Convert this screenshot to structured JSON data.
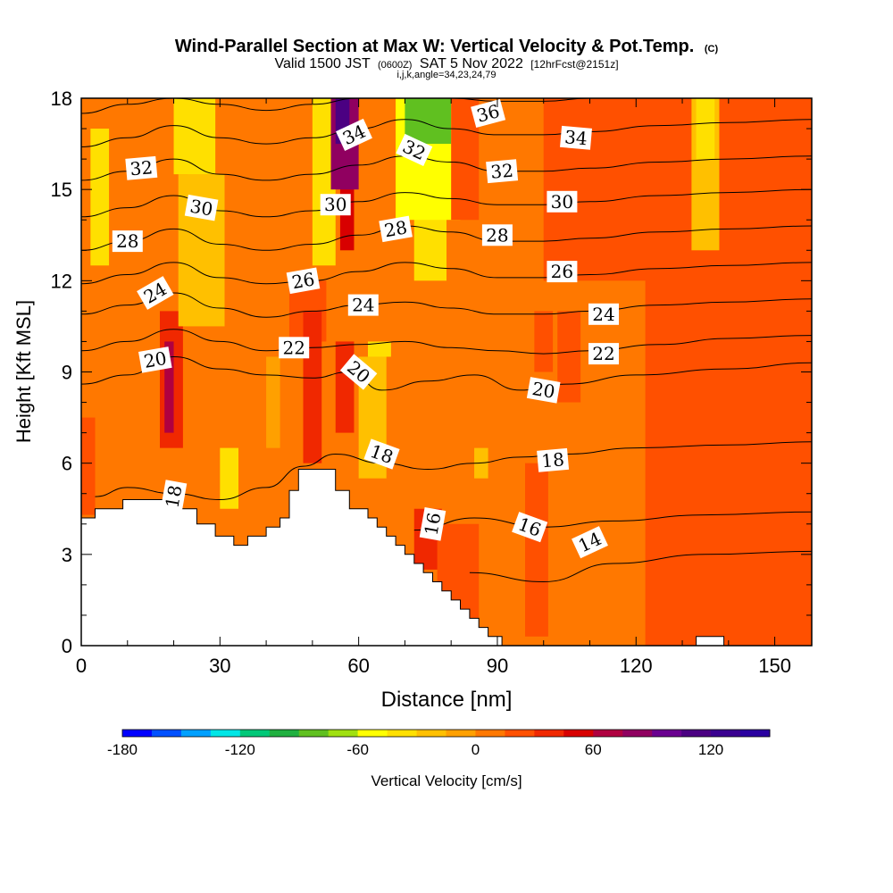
{
  "chart_data": {
    "type": "heatmap",
    "title": "Wind-Parallel Section at Max W: Vertical Velocity & Pot.Temp.",
    "title_mark": "(C)",
    "subtitle": {
      "prefix": "Valid 1500 JST",
      "utc": "(0600Z)",
      "date": "SAT 5 Nov 2022",
      "forecast": "[12hrFcst@2151z]"
    },
    "info": "i,j,k,angle=34,23,24,79",
    "xlabel": "Distance [nm]",
    "ylabel": "Height [Kft MSL]",
    "xlim": [
      0,
      158
    ],
    "ylim": [
      0,
      18
    ],
    "x_ticks": [
      0,
      30,
      60,
      90,
      120,
      150
    ],
    "y_ticks": [
      0,
      3,
      6,
      9,
      12,
      15,
      18
    ],
    "grid": false,
    "colorbar": {
      "label": "Vertical Velocity [cm/s]",
      "min": -180,
      "max": 150,
      "step": 15,
      "tick_labels": [
        -180,
        -120,
        -60,
        0,
        60,
        120
      ],
      "colors": [
        "#0000ff",
        "#0050ff",
        "#00a0ff",
        "#00e6e6",
        "#00c878",
        "#20b040",
        "#60c020",
        "#a0e010",
        "#ffff00",
        "#ffe000",
        "#ffc000",
        "#ffa000",
        "#ff7800",
        "#ff5000",
        "#f02800",
        "#d80000",
        "#b00040",
        "#900060",
        "#6a0090",
        "#4b0082",
        "#3a0090",
        "#2a00a0"
      ]
    },
    "terrain_profile": {
      "x": [
        0,
        3,
        3,
        9,
        9,
        20,
        20,
        25,
        25,
        29,
        29,
        33,
        33,
        36,
        36,
        40,
        40,
        43,
        43,
        45,
        45,
        47,
        47,
        55,
        55,
        58,
        58,
        62,
        62,
        64,
        64,
        66,
        66,
        68,
        68,
        70,
        70,
        72,
        72,
        74,
        74,
        76,
        76,
        78,
        78,
        80,
        80,
        82,
        82,
        84,
        84,
        86,
        86,
        88,
        88,
        91,
        91,
        133,
        133,
        139,
        139,
        158
      ],
      "y": [
        4.2,
        4.2,
        4.5,
        4.5,
        4.8,
        4.8,
        4.5,
        4.5,
        4.0,
        4.0,
        3.6,
        3.6,
        3.3,
        3.3,
        3.6,
        3.6,
        3.9,
        3.9,
        4.2,
        4.2,
        5.1,
        5.1,
        5.8,
        5.8,
        5.1,
        5.1,
        4.5,
        4.5,
        4.2,
        4.2,
        3.9,
        3.9,
        3.6,
        3.6,
        3.3,
        3.3,
        3.0,
        3.0,
        2.7,
        2.7,
        2.4,
        2.4,
        2.1,
        2.1,
        1.8,
        1.8,
        1.5,
        1.5,
        1.2,
        1.2,
        0.9,
        0.9,
        0.6,
        0.6,
        0.3,
        0.3,
        0.0,
        0.0,
        0.3,
        0.3,
        0.0,
        0.0
      ]
    },
    "velocity_cells": [
      {
        "x0": 0,
        "x1": 158,
        "y0": 0,
        "y1": 18,
        "w": 0
      },
      {
        "x0": 0,
        "x1": 12,
        "y0": 0,
        "y1": 18,
        "w": 10
      },
      {
        "x0": 12,
        "x1": 28,
        "y0": 4.5,
        "y1": 18,
        "w": 8
      },
      {
        "x0": 28,
        "x1": 45,
        "y0": 3,
        "y1": 11,
        "w": 10
      },
      {
        "x0": 45,
        "x1": 58,
        "y0": 5,
        "y1": 12,
        "w": 10
      },
      {
        "x0": 60,
        "x1": 85,
        "y0": 3,
        "y1": 12,
        "w": 10
      },
      {
        "x0": 85,
        "x1": 122,
        "y0": 0,
        "y1": 12,
        "w": 0
      },
      {
        "x0": 122,
        "x1": 158,
        "y0": 0,
        "y1": 18,
        "w": 15
      },
      {
        "x0": 100,
        "x1": 125,
        "y0": 12,
        "y1": 18,
        "w": 15
      },
      {
        "x0": 91,
        "x1": 115,
        "y0": 0,
        "y1": 2.5,
        "w": 0
      },
      {
        "x0": 96,
        "x1": 101,
        "y0": 0.3,
        "y1": 6,
        "w": 15
      },
      {
        "x0": 140,
        "x1": 150,
        "y0": 0.3,
        "y1": 5,
        "w": 15
      },
      {
        "x0": 0,
        "x1": 3,
        "y0": 4.3,
        "y1": 7.5,
        "w": 20
      },
      {
        "x0": 17,
        "x1": 22,
        "y0": 6.5,
        "y1": 11,
        "w": 40
      },
      {
        "x0": 18,
        "x1": 20,
        "y0": 7,
        "y1": 10,
        "w": 70
      },
      {
        "x0": 23,
        "x1": 27,
        "y0": 13,
        "y1": 18,
        "w": -15
      },
      {
        "x0": 21,
        "x1": 31,
        "y0": 10.5,
        "y1": 15.5,
        "w": -30
      },
      {
        "x0": 20,
        "x1": 29,
        "y0": 15.5,
        "y1": 18,
        "w": -45
      },
      {
        "x0": 2,
        "x1": 6,
        "y0": 12.5,
        "y1": 17,
        "w": -45
      },
      {
        "x0": 30,
        "x1": 34,
        "y0": 4.5,
        "y1": 6.5,
        "w": -45
      },
      {
        "x0": 40,
        "x1": 43,
        "y0": 6.5,
        "y1": 9.5,
        "w": -15
      },
      {
        "x0": 45,
        "x1": 53,
        "y0": 10,
        "y1": 12,
        "w": 15
      },
      {
        "x0": 48,
        "x1": 52,
        "y0": 6,
        "y1": 11,
        "w": 30
      },
      {
        "x0": 56,
        "x1": 59,
        "y0": 13,
        "y1": 18,
        "w": 45
      },
      {
        "x0": 55,
        "x1": 59,
        "y0": 7,
        "y1": 10,
        "w": 30
      },
      {
        "x0": 50,
        "x1": 55,
        "y0": 12.5,
        "y1": 18,
        "w": -45
      },
      {
        "x0": 54,
        "x1": 60,
        "y0": 15,
        "y1": 18,
        "w": 75
      },
      {
        "x0": 55,
        "x1": 58,
        "y0": 16.5,
        "y1": 18,
        "w": 105
      },
      {
        "x0": 60,
        "x1": 66,
        "y0": 5.5,
        "y1": 9.5,
        "w": -30
      },
      {
        "x0": 62,
        "x1": 67,
        "y0": 9.5,
        "y1": 10,
        "w": -45
      },
      {
        "x0": 72,
        "x1": 79,
        "y0": 12,
        "y1": 18,
        "w": -45
      },
      {
        "x0": 68,
        "x1": 82,
        "y0": 14,
        "y1": 18,
        "w": -60
      },
      {
        "x0": 70,
        "x1": 80,
        "y0": 16.5,
        "y1": 18,
        "w": -90
      },
      {
        "x0": 80,
        "x1": 86,
        "y0": 14,
        "y1": 18,
        "w": 15
      },
      {
        "x0": 72,
        "x1": 78,
        "y0": 2.5,
        "y1": 4.5,
        "w": 30
      },
      {
        "x0": 77,
        "x1": 86,
        "y0": 0.9,
        "y1": 4,
        "w": 15
      },
      {
        "x0": 85,
        "x1": 88,
        "y0": 5.5,
        "y1": 6.5,
        "w": -30
      },
      {
        "x0": 98,
        "x1": 102,
        "y0": 9,
        "y1": 11,
        "w": 15
      },
      {
        "x0": 103,
        "x1": 108,
        "y0": 8,
        "y1": 11,
        "w": 15
      },
      {
        "x0": 125,
        "x1": 158,
        "y0": 9,
        "y1": 15,
        "w": 15
      },
      {
        "x0": 132,
        "x1": 138,
        "y0": 13,
        "y1": 18,
        "w": -30
      },
      {
        "x0": 133,
        "x1": 137,
        "y0": 16,
        "y1": 18,
        "w": -45
      },
      {
        "x0": 143,
        "x1": 152,
        "y0": 12,
        "y1": 18,
        "w": 15
      },
      {
        "x0": 150,
        "x1": 158,
        "y0": 0.3,
        "y1": 2,
        "w": 15
      }
    ],
    "isentropes": [
      {
        "theta": 14,
        "x": [
          84,
          100,
          115,
          135,
          158
        ],
        "y": [
          2.4,
          2.1,
          2.7,
          3.0,
          3.1
        ]
      },
      {
        "theta": 16,
        "x": [
          72,
          85,
          100,
          115,
          135,
          158
        ],
        "y": [
          3.8,
          4.2,
          3.9,
          4.1,
          4.3,
          4.4
        ]
      },
      {
        "theta": 18,
        "x": [
          3,
          10,
          20,
          30,
          40,
          48,
          55,
          65,
          75,
          85,
          95,
          105,
          120,
          140,
          158
        ],
        "y": [
          4.9,
          5.2,
          5.0,
          4.8,
          5.2,
          5.9,
          6.3,
          6.0,
          5.8,
          6.0,
          6.2,
          6.3,
          6.5,
          6.6,
          6.7
        ]
      },
      {
        "theta": 20,
        "x": [
          0,
          10,
          20,
          30,
          40,
          50,
          58,
          65,
          75,
          85,
          95,
          105,
          120,
          140,
          158
        ],
        "y": [
          8.6,
          8.9,
          9.5,
          9.1,
          8.9,
          8.8,
          9.0,
          8.4,
          8.7,
          8.9,
          8.4,
          8.6,
          8.9,
          9.1,
          9.3
        ]
      },
      {
        "theta": 22,
        "x": [
          0,
          10,
          20,
          30,
          40,
          50,
          60,
          70,
          80,
          90,
          100,
          110,
          125,
          140,
          158
        ],
        "y": [
          9.7,
          10.0,
          10.4,
          10.0,
          9.7,
          9.8,
          9.9,
          10.0,
          9.8,
          9.7,
          9.6,
          9.7,
          9.9,
          10.1,
          10.2
        ]
      },
      {
        "theta": 24,
        "x": [
          0,
          10,
          20,
          30,
          40,
          50,
          60,
          70,
          80,
          90,
          100,
          110,
          125,
          140,
          158
        ],
        "y": [
          10.9,
          11.2,
          11.6,
          11.1,
          10.8,
          11.0,
          11.2,
          11.3,
          11.1,
          10.9,
          10.9,
          11.0,
          11.2,
          11.3,
          11.4
        ]
      },
      {
        "theta": 26,
        "x": [
          0,
          10,
          20,
          30,
          40,
          50,
          60,
          70,
          80,
          90,
          100,
          110,
          125,
          140,
          158
        ],
        "y": [
          11.9,
          12.2,
          12.6,
          12.1,
          11.9,
          12.0,
          12.3,
          12.6,
          12.4,
          12.1,
          12.1,
          12.2,
          12.4,
          12.5,
          12.6
        ]
      },
      {
        "theta": 28,
        "x": [
          0,
          10,
          20,
          30,
          40,
          50,
          60,
          70,
          80,
          90,
          100,
          110,
          125,
          140,
          158
        ],
        "y": [
          13.0,
          13.3,
          13.7,
          13.2,
          13.0,
          13.2,
          13.5,
          13.8,
          13.6,
          13.3,
          13.3,
          13.4,
          13.6,
          13.7,
          13.8
        ]
      },
      {
        "theta": 30,
        "x": [
          0,
          10,
          20,
          30,
          40,
          50,
          60,
          70,
          80,
          90,
          100,
          110,
          125,
          140,
          158
        ],
        "y": [
          14.1,
          14.4,
          14.8,
          14.3,
          14.1,
          14.3,
          14.6,
          14.9,
          14.7,
          14.5,
          14.5,
          14.6,
          14.8,
          14.9,
          15.0
        ]
      },
      {
        "theta": 32,
        "x": [
          0,
          10,
          20,
          30,
          40,
          50,
          60,
          70,
          80,
          90,
          100,
          110,
          125,
          140,
          158
        ],
        "y": [
          15.3,
          15.6,
          16.0,
          15.5,
          15.3,
          15.5,
          15.8,
          16.1,
          15.9,
          15.6,
          15.6,
          15.7,
          15.9,
          16.0,
          16.1
        ]
      },
      {
        "theta": 34,
        "x": [
          0,
          10,
          20,
          30,
          40,
          50,
          60,
          70,
          80,
          90,
          100,
          110,
          125,
          140,
          158
        ],
        "y": [
          16.4,
          16.7,
          17.1,
          16.7,
          16.5,
          16.7,
          17.0,
          17.3,
          17.0,
          16.8,
          16.8,
          16.9,
          17.1,
          17.2,
          17.3
        ]
      },
      {
        "theta": 36,
        "x": [
          0,
          10,
          20,
          30,
          40,
          50,
          60,
          70,
          80,
          90,
          100,
          110,
          125,
          140,
          158
        ],
        "y": [
          17.5,
          17.8,
          18.0,
          17.8,
          17.6,
          17.8,
          18.0,
          18.0,
          18.0,
          17.9,
          17.9,
          18.0,
          18.0,
          18.0,
          18.0
        ]
      }
    ],
    "contour_labels": [
      {
        "text": "14",
        "x": 110,
        "y": 3.4,
        "angle": -25
      },
      {
        "text": "16",
        "x": 97,
        "y": 3.9,
        "angle": 20
      },
      {
        "text": "16",
        "x": 76,
        "y": 4.0,
        "angle": -80
      },
      {
        "text": "18",
        "x": 20,
        "y": 4.9,
        "angle": -80
      },
      {
        "text": "18",
        "x": 65,
        "y": 6.3,
        "angle": 20
      },
      {
        "text": "18",
        "x": 102,
        "y": 6.1,
        "angle": -5
      },
      {
        "text": "20",
        "x": 16,
        "y": 9.4,
        "angle": -10
      },
      {
        "text": "20",
        "x": 60,
        "y": 9.0,
        "angle": 40
      },
      {
        "text": "20",
        "x": 100,
        "y": 8.4,
        "angle": 10
      },
      {
        "text": "22",
        "x": 46,
        "y": 9.8,
        "angle": 0
      },
      {
        "text": "22",
        "x": 113,
        "y": 9.6,
        "angle": 0
      },
      {
        "text": "24",
        "x": 16,
        "y": 11.6,
        "angle": -30
      },
      {
        "text": "24",
        "x": 61,
        "y": 11.2,
        "angle": 0
      },
      {
        "text": "24",
        "x": 113,
        "y": 10.9,
        "angle": 0
      },
      {
        "text": "26",
        "x": 48,
        "y": 12.0,
        "angle": -10
      },
      {
        "text": "26",
        "x": 104,
        "y": 12.3,
        "angle": 0
      },
      {
        "text": "28",
        "x": 10,
        "y": 13.3,
        "angle": 0
      },
      {
        "text": "28",
        "x": 68,
        "y": 13.7,
        "angle": -10
      },
      {
        "text": "28",
        "x": 90,
        "y": 13.5,
        "angle": 0
      },
      {
        "text": "30",
        "x": 26,
        "y": 14.4,
        "angle": 10
      },
      {
        "text": "30",
        "x": 55,
        "y": 14.5,
        "angle": 0
      },
      {
        "text": "30",
        "x": 104,
        "y": 14.6,
        "angle": 0
      },
      {
        "text": "32",
        "x": 13,
        "y": 15.7,
        "angle": -5
      },
      {
        "text": "32",
        "x": 72,
        "y": 16.3,
        "angle": 25
      },
      {
        "text": "32",
        "x": 91,
        "y": 15.6,
        "angle": -5
      },
      {
        "text": "34",
        "x": 59,
        "y": 16.8,
        "angle": -25
      },
      {
        "text": "34",
        "x": 107,
        "y": 16.7,
        "angle": 5
      },
      {
        "text": "36",
        "x": 88,
        "y": 17.5,
        "angle": -15
      }
    ]
  }
}
